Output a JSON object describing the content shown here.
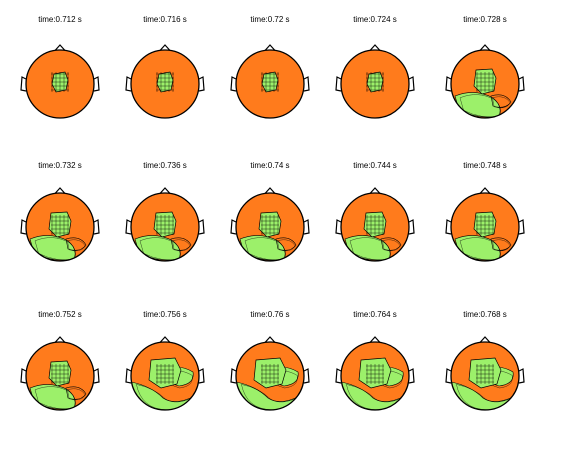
{
  "figure": {
    "colors": {
      "background": "#ffffff",
      "scalp": "#ff7b1c",
      "active": "#9cf06a",
      "contour": "#000000",
      "outline": "#000000"
    },
    "panels": [
      {
        "title": "time:0.712 s",
        "activity": "low"
      },
      {
        "title": "time:0.716 s",
        "activity": "low"
      },
      {
        "title": "time:0.72 s",
        "activity": "low"
      },
      {
        "title": "time:0.724 s",
        "activity": "low"
      },
      {
        "title": "time:0.728 s",
        "activity": "medium"
      },
      {
        "title": "time:0.732 s",
        "activity": "medium"
      },
      {
        "title": "time:0.736 s",
        "activity": "medium"
      },
      {
        "title": "time:0.74 s",
        "activity": "medium"
      },
      {
        "title": "time:0.744 s",
        "activity": "medium"
      },
      {
        "title": "time:0.748 s",
        "activity": "medium"
      },
      {
        "title": "time:0.752 s",
        "activity": "medium"
      },
      {
        "title": "time:0.756 s",
        "activity": "high"
      },
      {
        "title": "time:0.76 s",
        "activity": "high"
      },
      {
        "title": "time:0.764 s",
        "activity": "high"
      },
      {
        "title": "time:0.768 s",
        "activity": "high"
      }
    ]
  }
}
